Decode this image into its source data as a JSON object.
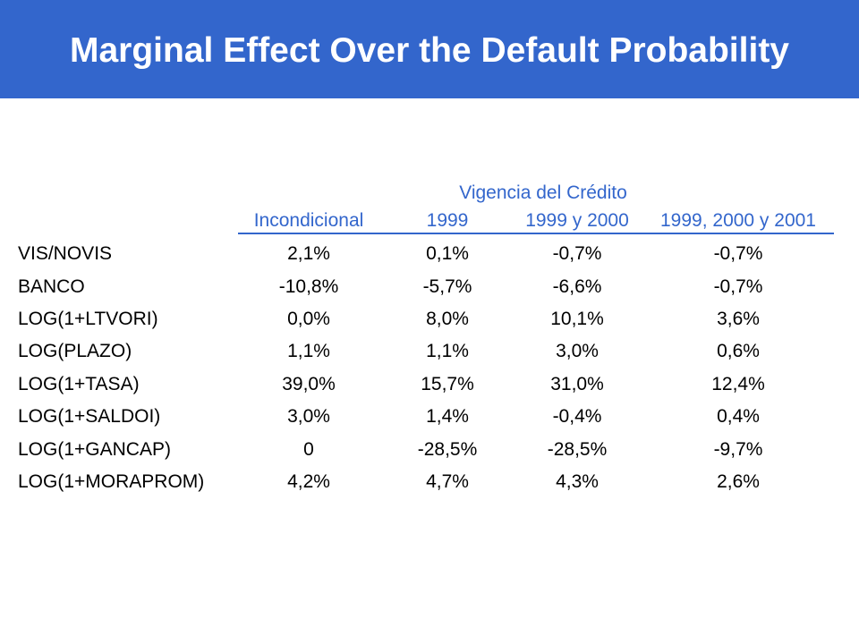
{
  "title": "Marginal Effect Over the Default Probability",
  "table": {
    "group_header": "Vigencia del Crédito",
    "columns": [
      "Incondicional",
      "1999",
      "1999 y 2000",
      "1999, 2000 y 2001"
    ],
    "rows": [
      {
        "label": "VIS/NOVIS",
        "values": [
          "2,1%",
          "0,1%",
          "-0,7%",
          "-0,7%"
        ]
      },
      {
        "label": "BANCO",
        "values": [
          "-10,8%",
          "-5,7%",
          "-6,6%",
          "-0,7%"
        ]
      },
      {
        "label": "LOG(1+LTVORI)",
        "values": [
          "0,0%",
          "8,0%",
          "10,1%",
          "3,6%"
        ]
      },
      {
        "label": "LOG(PLAZO)",
        "values": [
          "1,1%",
          "1,1%",
          "3,0%",
          "0,6%"
        ]
      },
      {
        "label": "LOG(1+TASA)",
        "values": [
          "39,0%",
          "15,7%",
          "31,0%",
          "12,4%"
        ]
      },
      {
        "label": "LOG(1+SALDOI)",
        "values": [
          "3,0%",
          "1,4%",
          "-0,4%",
          "0,4%"
        ]
      },
      {
        "label": "LOG(1+GANCAP)",
        "values": [
          "0",
          "-28,5%",
          "-28,5%",
          "-9,7%"
        ]
      },
      {
        "label": "LOG(1+MORAPROM)",
        "values": [
          "4,2%",
          "4,7%",
          "4,3%",
          "2,6%"
        ]
      }
    ]
  },
  "colors": {
    "header_bg": "#3366cc",
    "title_text": "#ffffff",
    "column_header_text": "#3366cc",
    "body_text": "#000000"
  }
}
